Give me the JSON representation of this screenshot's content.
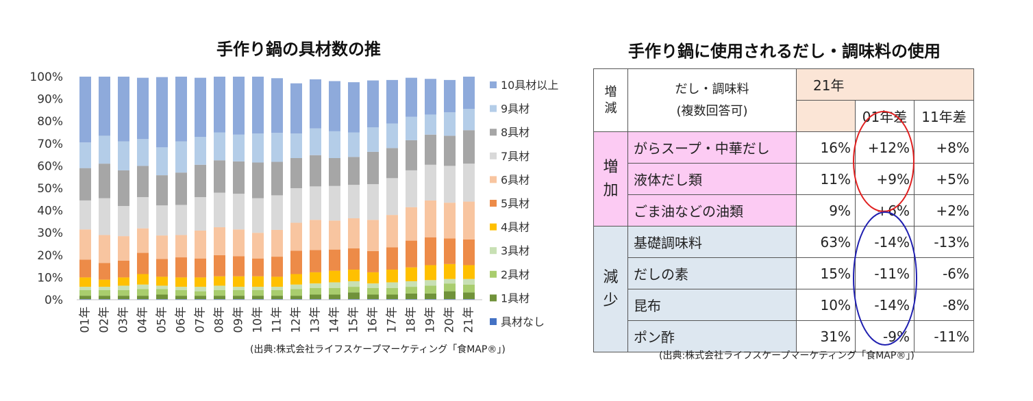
{
  "chart_data": {
    "type": "bar",
    "stacked": true,
    "title": "手作り鍋の具材数の推",
    "categories": [
      "01年",
      "02年",
      "03年",
      "04年",
      "05年",
      "06年",
      "07年",
      "08年",
      "09年",
      "10年",
      "11年",
      "12年",
      "13年",
      "14年",
      "15年",
      "16年",
      "17年",
      "18年",
      "19年",
      "20年",
      "21年"
    ],
    "y_ticks": [
      "0%",
      "10%",
      "20%",
      "30%",
      "40%",
      "50%",
      "60%",
      "70%",
      "80%",
      "90%",
      "100%"
    ],
    "ylim": [
      0,
      100
    ],
    "legend_position": "right",
    "series": [
      {
        "name": "具材なし",
        "color": "#4472c4",
        "values": [
          0.3,
          0.3,
          0.3,
          0.3,
          0.3,
          0.3,
          0.3,
          0.3,
          0.3,
          0.3,
          0.3,
          0.3,
          0.3,
          0.3,
          0.3,
          0.3,
          0.3,
          0.3,
          0.3,
          0.3,
          0.3
        ]
      },
      {
        "name": "1具材",
        "color": "#70923a",
        "values": [
          1.5,
          1.5,
          1.5,
          1.5,
          2,
          1.5,
          1.5,
          1.5,
          1.5,
          1.5,
          1.5,
          1.5,
          2,
          2,
          3,
          2,
          2,
          2.5,
          2.5,
          3.5,
          3
        ]
      },
      {
        "name": "2具材",
        "color": "#a9cd6e",
        "values": [
          2.5,
          2.5,
          2.5,
          3,
          2.5,
          2.5,
          2,
          2.5,
          2.5,
          2.5,
          2.5,
          3,
          3,
          3,
          2.5,
          3,
          3,
          3,
          3.5,
          3.5,
          3.5
        ]
      },
      {
        "name": "3具材",
        "color": "#c8e0b4",
        "values": [
          1.5,
          1.5,
          2,
          2,
          1.5,
          1.5,
          2,
          2,
          1.5,
          1.5,
          1.5,
          2,
          2,
          2.5,
          2.5,
          2,
          2.5,
          2.5,
          2.5,
          2,
          2.5
        ]
      },
      {
        "name": "4具材",
        "color": "#ffc000",
        "values": [
          4.2,
          3.2,
          3.7,
          4.7,
          4,
          4.2,
          4.2,
          4.2,
          4.7,
          4.7,
          4.5,
          4.7,
          5,
          5.2,
          5.2,
          5,
          5.7,
          6.2,
          6.7,
          6.7,
          6.2
        ]
      },
      {
        "name": "5具材",
        "color": "#ed8b48",
        "values": [
          8,
          7.5,
          7.5,
          9.5,
          8,
          9,
          8.5,
          9.5,
          9,
          8,
          9,
          10.5,
          10,
          9.5,
          9.5,
          9.5,
          10,
          12,
          12.5,
          11.5,
          11.5
        ]
      },
      {
        "name": "6具材",
        "color": "#f8c5a0",
        "values": [
          13.5,
          12.5,
          11,
          11,
          10.5,
          10,
          12.5,
          12.5,
          12,
          11.5,
          12,
          12.5,
          13.5,
          13,
          13.5,
          14,
          14.5,
          15,
          16.5,
          16,
          17
        ]
      },
      {
        "name": "7具材",
        "color": "#d9d9d9",
        "values": [
          13,
          16.5,
          13.5,
          14,
          13.5,
          13.5,
          15,
          15.5,
          16,
          15.5,
          15.5,
          15.5,
          15,
          15.5,
          15,
          16,
          16.5,
          16.5,
          16,
          16.5,
          17
        ]
      },
      {
        "name": "8具材",
        "color": "#a6a6a6",
        "values": [
          14.5,
          15.5,
          16,
          14,
          13.5,
          14.5,
          14.5,
          14.5,
          14.5,
          16,
          15,
          13.5,
          14,
          12.5,
          12.5,
          14.5,
          13.5,
          13.5,
          13.5,
          13.5,
          15
        ]
      },
      {
        "name": "9具材",
        "color": "#b4cde8",
        "values": [
          11.5,
          12.5,
          13,
          12,
          12.5,
          14,
          12.5,
          12.5,
          12,
          13,
          13,
          11,
          12,
          12,
          11,
          11,
          11,
          10.5,
          9,
          10.5,
          9.5
        ]
      },
      {
        "name": "10具材以上",
        "color": "#8eaadb",
        "values": [
          29.5,
          26.5,
          29,
          27.5,
          31.5,
          29,
          26.5,
          25,
          26,
          25.5,
          24.5,
          22.5,
          22,
          22.5,
          22.5,
          21,
          19.5,
          17.5,
          16,
          14.5,
          14.5
        ]
      }
    ]
  },
  "source_text": "(出典:株式会社ライフスケープマーケティング「食MAP®」)",
  "table": {
    "title": "手作り鍋に使用されるだし・調味料の使用",
    "header": {
      "zougen": "増減",
      "item_line1": "だし・調味料",
      "item_line2": "(複数回答可)",
      "year": "21年",
      "diff01": "01年差",
      "diff11": "11年差"
    },
    "increase_label": [
      "増",
      "加"
    ],
    "decrease_label": [
      "減",
      "少"
    ],
    "increase_rows": [
      {
        "name": "がらスープ・中華だし",
        "val": "16%",
        "d01": "+12%",
        "d11": "+8%"
      },
      {
        "name": "液体だし類",
        "val": "11%",
        "d01": "+9%",
        "d11": "+5%"
      },
      {
        "name": "ごま油などの油類",
        "val": "9%",
        "d01": "+6%",
        "d11": "+2%"
      }
    ],
    "decrease_rows": [
      {
        "name": "基礎調味料",
        "val": "63%",
        "d01": "-14%",
        "d11": "-13%"
      },
      {
        "name": "だしの素",
        "val": "15%",
        "d01": "-11%",
        "d11": "-6%"
      },
      {
        "name": "昆布",
        "val": "10%",
        "d01": "-14%",
        "d11": "-8%"
      },
      {
        "name": "ポン酢",
        "val": "31%",
        "d01": "-9%",
        "d11": "-11%"
      }
    ],
    "ring_colors": {
      "increase": "#e02020",
      "decrease": "#2020b0"
    }
  }
}
